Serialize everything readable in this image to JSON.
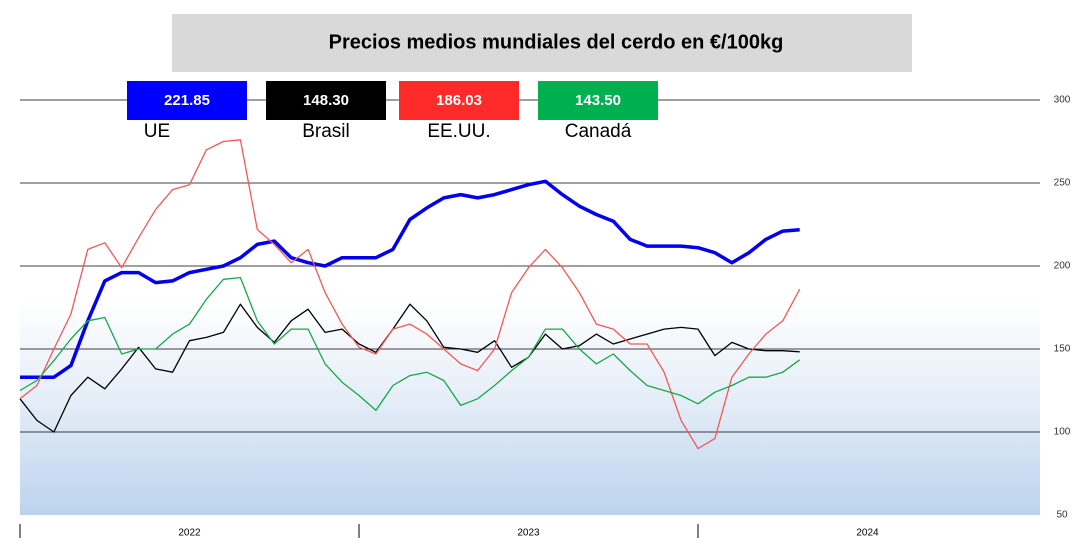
{
  "chart_data": {
    "type": "line",
    "title": "Precios medios mundiales del cerdo en €/100kg",
    "x": [
      2022.0,
      2022.05,
      2022.1,
      2022.15,
      2022.2,
      2022.25,
      2022.3,
      2022.35,
      2022.4,
      2022.45,
      2022.5,
      2022.55,
      2022.6,
      2022.65,
      2022.7,
      2022.75,
      2022.8,
      2022.85,
      2022.9,
      2022.95,
      2023.0,
      2023.05,
      2023.1,
      2023.15,
      2023.2,
      2023.25,
      2023.3,
      2023.35,
      2023.4,
      2023.45,
      2023.5,
      2023.55,
      2023.6,
      2023.65,
      2023.7,
      2023.75,
      2023.8,
      2023.85,
      2023.9,
      2023.95,
      2024.0,
      2024.05,
      2024.1,
      2024.15,
      2024.2,
      2024.25,
      2024.3
    ],
    "xlim": [
      2022,
      2025
    ],
    "xticks": [
      {
        "value": 2022.5,
        "label": "2022"
      },
      {
        "value": 2023.5,
        "label": "2023"
      },
      {
        "value": 2024.5,
        "label": "2024"
      }
    ],
    "ylim": [
      50,
      300
    ],
    "yticks": [
      50,
      100,
      150,
      200,
      250,
      300
    ],
    "grid": true,
    "series": [
      {
        "name": "UE",
        "color": "#0000ee",
        "box_color": "#0000ff",
        "width": 3.5,
        "current": {
          "value": 221.85,
          "label": "221.85"
        },
        "values": [
          133,
          133,
          133,
          140,
          167,
          191,
          196,
          196,
          190,
          191,
          196,
          198,
          200,
          205,
          213,
          215,
          205,
          202,
          200,
          205,
          205,
          205,
          210,
          228,
          235,
          241,
          243,
          241,
          243,
          246,
          249,
          251,
          243,
          236,
          231,
          227,
          216,
          212,
          212,
          212,
          211,
          208,
          202,
          208,
          216,
          221,
          221.85
        ]
      },
      {
        "name": "Brasil",
        "color": "#000000",
        "box_color": "#000000",
        "width": 1.3,
        "current": {
          "value": 148.3,
          "label": "148.30"
        },
        "values": [
          120,
          107,
          100,
          122,
          133,
          126,
          138,
          151,
          138,
          136,
          155,
          157,
          160,
          177,
          163,
          154,
          167,
          174,
          160,
          162,
          153,
          148,
          162,
          177,
          167,
          151,
          150,
          148,
          155,
          139,
          145,
          159,
          150,
          152,
          159,
          153,
          156,
          159,
          162,
          163,
          162,
          146,
          154,
          150,
          149,
          149,
          148.3
        ]
      },
      {
        "name": "EE.UU.",
        "color": "#f05a55",
        "box_color": "#ff2a2a",
        "width": 1.3,
        "current": {
          "value": 186.03,
          "label": "186.03"
        },
        "values": [
          120,
          128,
          150,
          171,
          210,
          214,
          199,
          217,
          234,
          246,
          249,
          270,
          275,
          276,
          222,
          213,
          202,
          210,
          184,
          165,
          151,
          147,
          162,
          165,
          159,
          150,
          141,
          137,
          150,
          184,
          199,
          210,
          199,
          184,
          165,
          162,
          153,
          153,
          136,
          107,
          90,
          96,
          133,
          147,
          159,
          167,
          186.03
        ]
      },
      {
        "name": "Canadá",
        "color": "#16a84a",
        "box_color": "#00b050",
        "width": 1.3,
        "current": {
          "value": 143.5,
          "label": "143.50"
        },
        "values": [
          125,
          131,
          143,
          156,
          167,
          169,
          147,
          150,
          150,
          159,
          165,
          180,
          192,
          193,
          167,
          153,
          162,
          162,
          141,
          130,
          122,
          113,
          128,
          134,
          136,
          131,
          116,
          120,
          128,
          137,
          145,
          162,
          162,
          150,
          141,
          147,
          137,
          128,
          125,
          122,
          117,
          124,
          128,
          133,
          133,
          136,
          143.5
        ]
      }
    ]
  }
}
